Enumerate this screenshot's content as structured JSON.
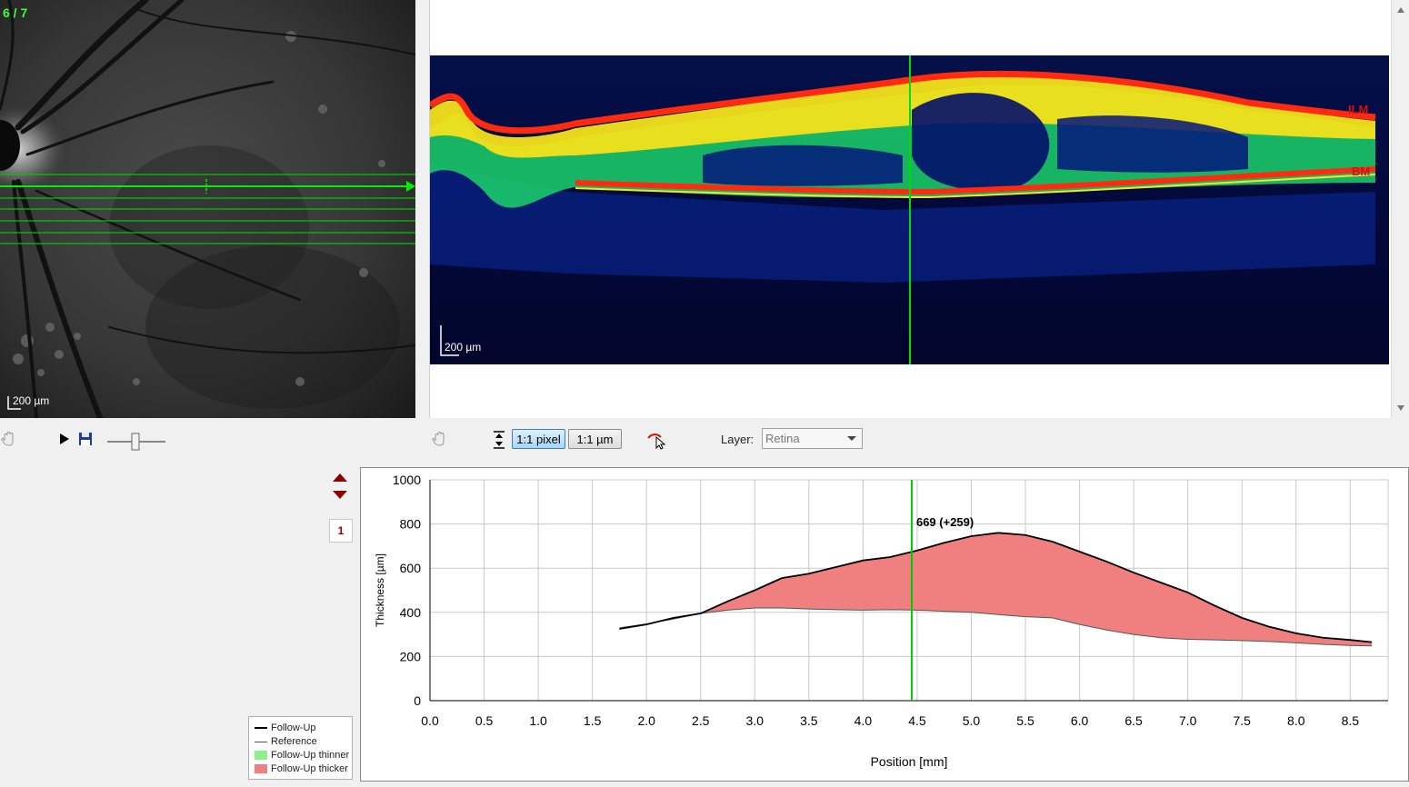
{
  "fundus": {
    "scan_counter": "6 / 7",
    "scale_label": "200 µm"
  },
  "bscan": {
    "scale_label": "200 µm",
    "layer_labels": {
      "top": "ILM",
      "bottom": "BM"
    }
  },
  "toolbar": {
    "pixel_button": "1:1 pixel",
    "um_button": "1:1 µm",
    "layer_label": "Layer:",
    "layer_value": "Retina"
  },
  "page": {
    "number": "1"
  },
  "legend": {
    "items": [
      {
        "label": "Follow-Up"
      },
      {
        "label": "Reference"
      },
      {
        "label": "Follow-Up thinner"
      },
      {
        "label": "Follow-Up thicker"
      }
    ]
  },
  "colors": {
    "follow_up": "#000000",
    "reference": "#555555",
    "thinner": "#90ee90",
    "thicker": "#f08080",
    "cursor": "#00cc00",
    "scan_line": "#00e000"
  },
  "chart_data": {
    "type": "area",
    "xlabel": "Position [mm]",
    "ylabel": "Thickness [µm]",
    "xlim": [
      0,
      8.85
    ],
    "ylim": [
      0,
      1000
    ],
    "xticks": [
      "0.0",
      "0.5",
      "1.0",
      "1.5",
      "2.0",
      "2.5",
      "3.0",
      "3.5",
      "4.0",
      "4.5",
      "5.0",
      "5.5",
      "6.0",
      "6.5",
      "7.0",
      "7.5",
      "8.0",
      "8.5"
    ],
    "yticks": [
      "0",
      "200",
      "400",
      "600",
      "800",
      "1000"
    ],
    "grid": true,
    "cursor": {
      "x": 4.45,
      "label": "669 (+259)"
    },
    "series": [
      {
        "name": "Follow-Up",
        "x": [
          1.75,
          2.0,
          2.25,
          2.5,
          2.75,
          3.0,
          3.25,
          3.5,
          3.75,
          4.0,
          4.25,
          4.5,
          4.75,
          5.0,
          5.25,
          5.5,
          5.75,
          6.0,
          6.25,
          6.5,
          6.75,
          7.0,
          7.25,
          7.5,
          7.75,
          8.0,
          8.25,
          8.5,
          8.7
        ],
        "values": [
          325,
          345,
          375,
          395,
          450,
          500,
          555,
          575,
          605,
          635,
          650,
          680,
          715,
          745,
          760,
          750,
          720,
          675,
          630,
          580,
          535,
          490,
          430,
          375,
          335,
          305,
          285,
          275,
          265
        ]
      },
      {
        "name": "Reference",
        "x": [
          1.75,
          2.0,
          2.25,
          2.5,
          2.75,
          3.0,
          3.25,
          3.5,
          3.75,
          4.0,
          4.25,
          4.5,
          4.75,
          5.0,
          5.25,
          5.5,
          5.75,
          6.0,
          6.25,
          6.5,
          6.75,
          7.0,
          7.25,
          7.5,
          7.75,
          8.0,
          8.25,
          8.5,
          8.7
        ],
        "values": [
          330,
          348,
          370,
          395,
          410,
          420,
          420,
          415,
          412,
          410,
          412,
          410,
          405,
          400,
          390,
          380,
          375,
          345,
          320,
          300,
          285,
          278,
          275,
          272,
          268,
          262,
          255,
          250,
          248
        ]
      }
    ]
  }
}
